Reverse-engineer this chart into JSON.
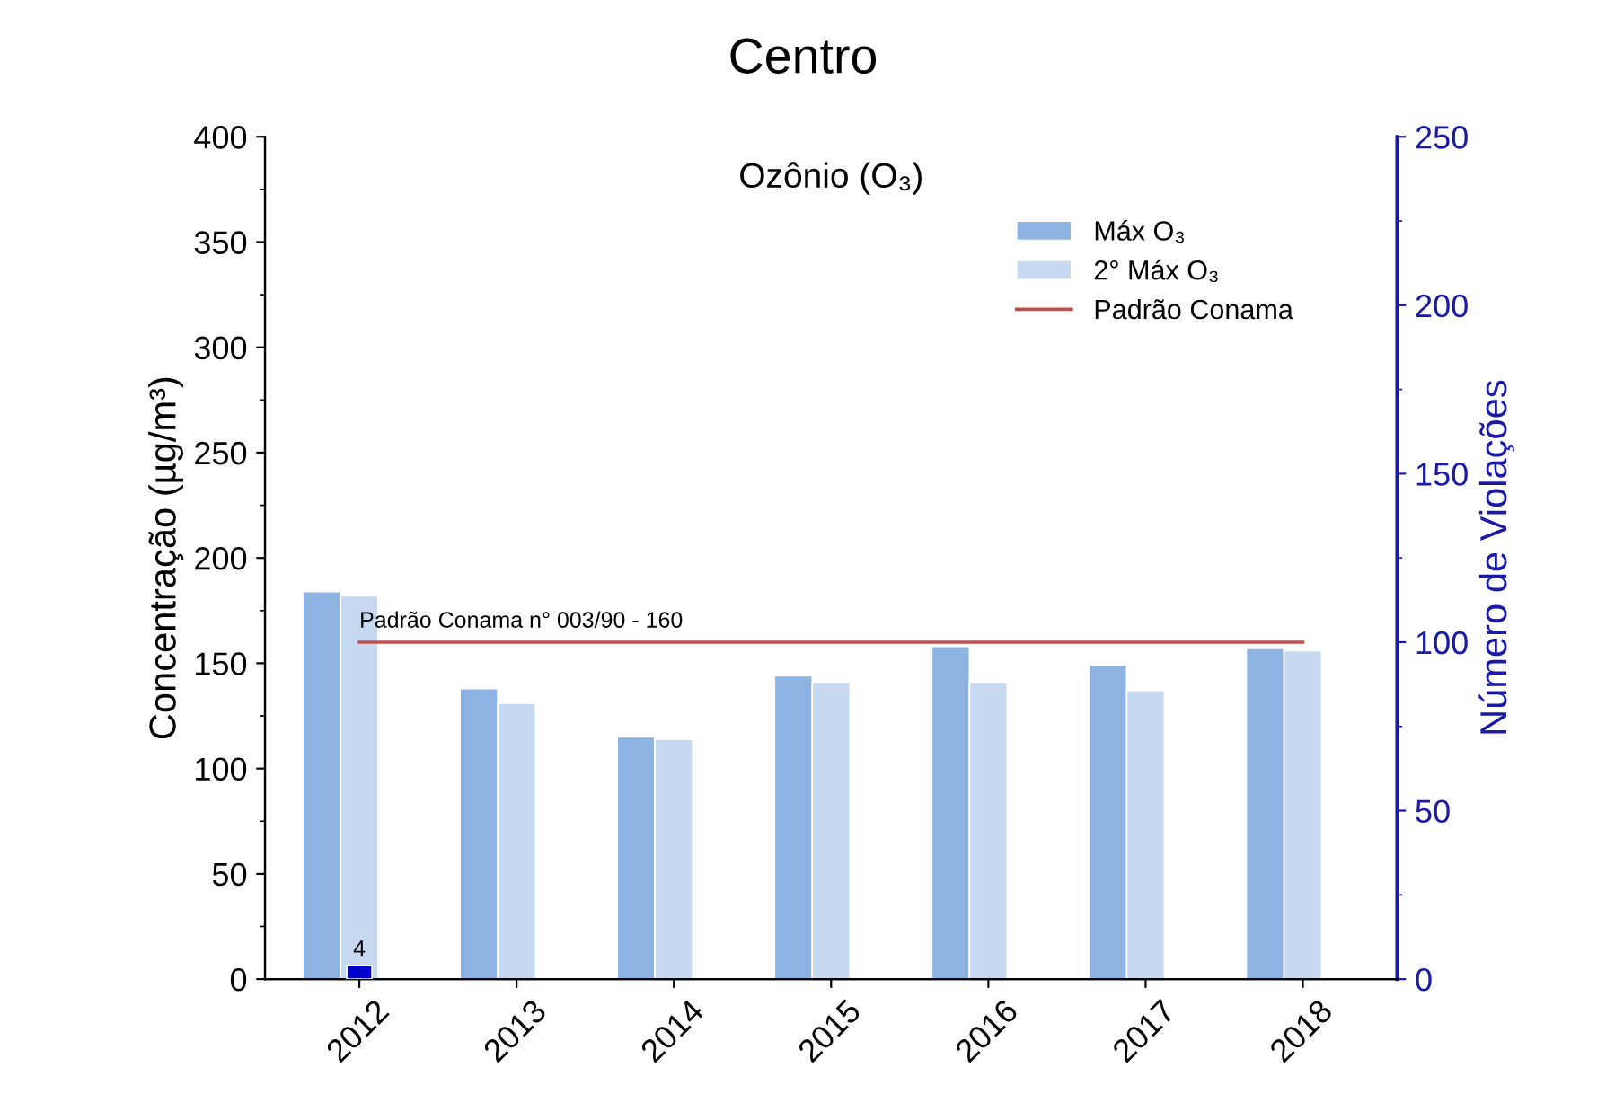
{
  "chart_data": {
    "type": "bar",
    "title": "Centro",
    "subtitle": "Ozônio (O₃)",
    "ylabel": "Concentração (µg/m³)",
    "y2label": "Número de Violações",
    "categories": [
      "2012",
      "2013",
      "2014",
      "2015",
      "2016",
      "2017",
      "2018"
    ],
    "series": [
      {
        "name": "Máx O₃",
        "color": "#8db3e2",
        "values": [
          184,
          138,
          115,
          144,
          158,
          149,
          157
        ]
      },
      {
        "name": "2° Máx O₃",
        "color": "#c6d9f0",
        "values": [
          182,
          131,
          114,
          141,
          141,
          137,
          156
        ]
      },
      {
        "name": "Padrão Conama",
        "type": "line",
        "color": "#c0504d",
        "values": [
          160,
          160,
          160,
          160,
          160,
          160,
          160
        ]
      },
      {
        "color": "#0000cc",
        "axis": "y2",
        "values": [
          4,
          null,
          null,
          null,
          null,
          null,
          null
        ],
        "value_labels": [
          "4",
          null,
          null,
          null,
          null,
          null,
          null
        ]
      }
    ],
    "annotations": [
      {
        "text": "Padrão Conama n° 003/90 - 160",
        "x": "2012",
        "y": 160
      }
    ],
    "ylim": [
      0,
      400
    ],
    "yticks": [
      0,
      50,
      100,
      150,
      200,
      250,
      300,
      350,
      400
    ],
    "y2lim": [
      0,
      250
    ],
    "y2ticks": [
      0,
      50,
      100,
      150,
      200,
      250
    ],
    "legend": "top right",
    "grid": false
  }
}
